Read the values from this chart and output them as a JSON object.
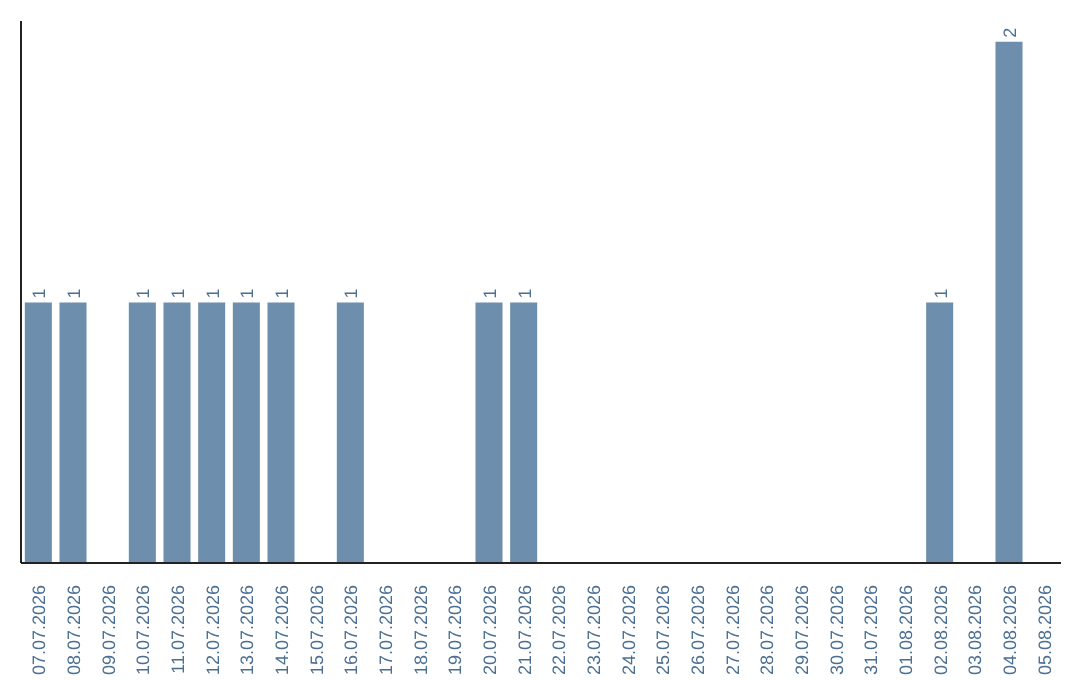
{
  "chart_data": {
    "type": "bar",
    "categories": [
      "07.07.2026",
      "08.07.2026",
      "09.07.2026",
      "10.07.2026",
      "11.07.2026",
      "12.07.2026",
      "13.07.2026",
      "14.07.2026",
      "15.07.2026",
      "16.07.2026",
      "17.07.2026",
      "18.07.2026",
      "19.07.2026",
      "20.07.2026",
      "21.07.2026",
      "22.07.2026",
      "23.07.2026",
      "24.07.2026",
      "25.07.2026",
      "26.07.2026",
      "27.07.2026",
      "28.07.2026",
      "29.07.2026",
      "30.07.2026",
      "31.07.2026",
      "01.08.2026",
      "02.08.2026",
      "03.08.2026",
      "04.08.2026",
      "05.08.2026"
    ],
    "values": [
      1,
      1,
      0,
      1,
      1,
      1,
      1,
      1,
      0,
      1,
      0,
      0,
      0,
      1,
      1,
      0,
      0,
      0,
      0,
      0,
      0,
      0,
      0,
      0,
      0,
      0,
      1,
      0,
      2,
      0
    ],
    "value_labels": [
      "1",
      "1",
      null,
      "1",
      "1",
      "1",
      "1",
      "1",
      null,
      "1",
      null,
      null,
      null,
      "1",
      "1",
      null,
      null,
      null,
      null,
      null,
      null,
      null,
      null,
      null,
      null,
      null,
      "1",
      null,
      "2",
      null
    ],
    "color": "#6d8fad",
    "ylim": [
      0,
      2.08
    ],
    "tick_labels": "x",
    "grid": false
  }
}
